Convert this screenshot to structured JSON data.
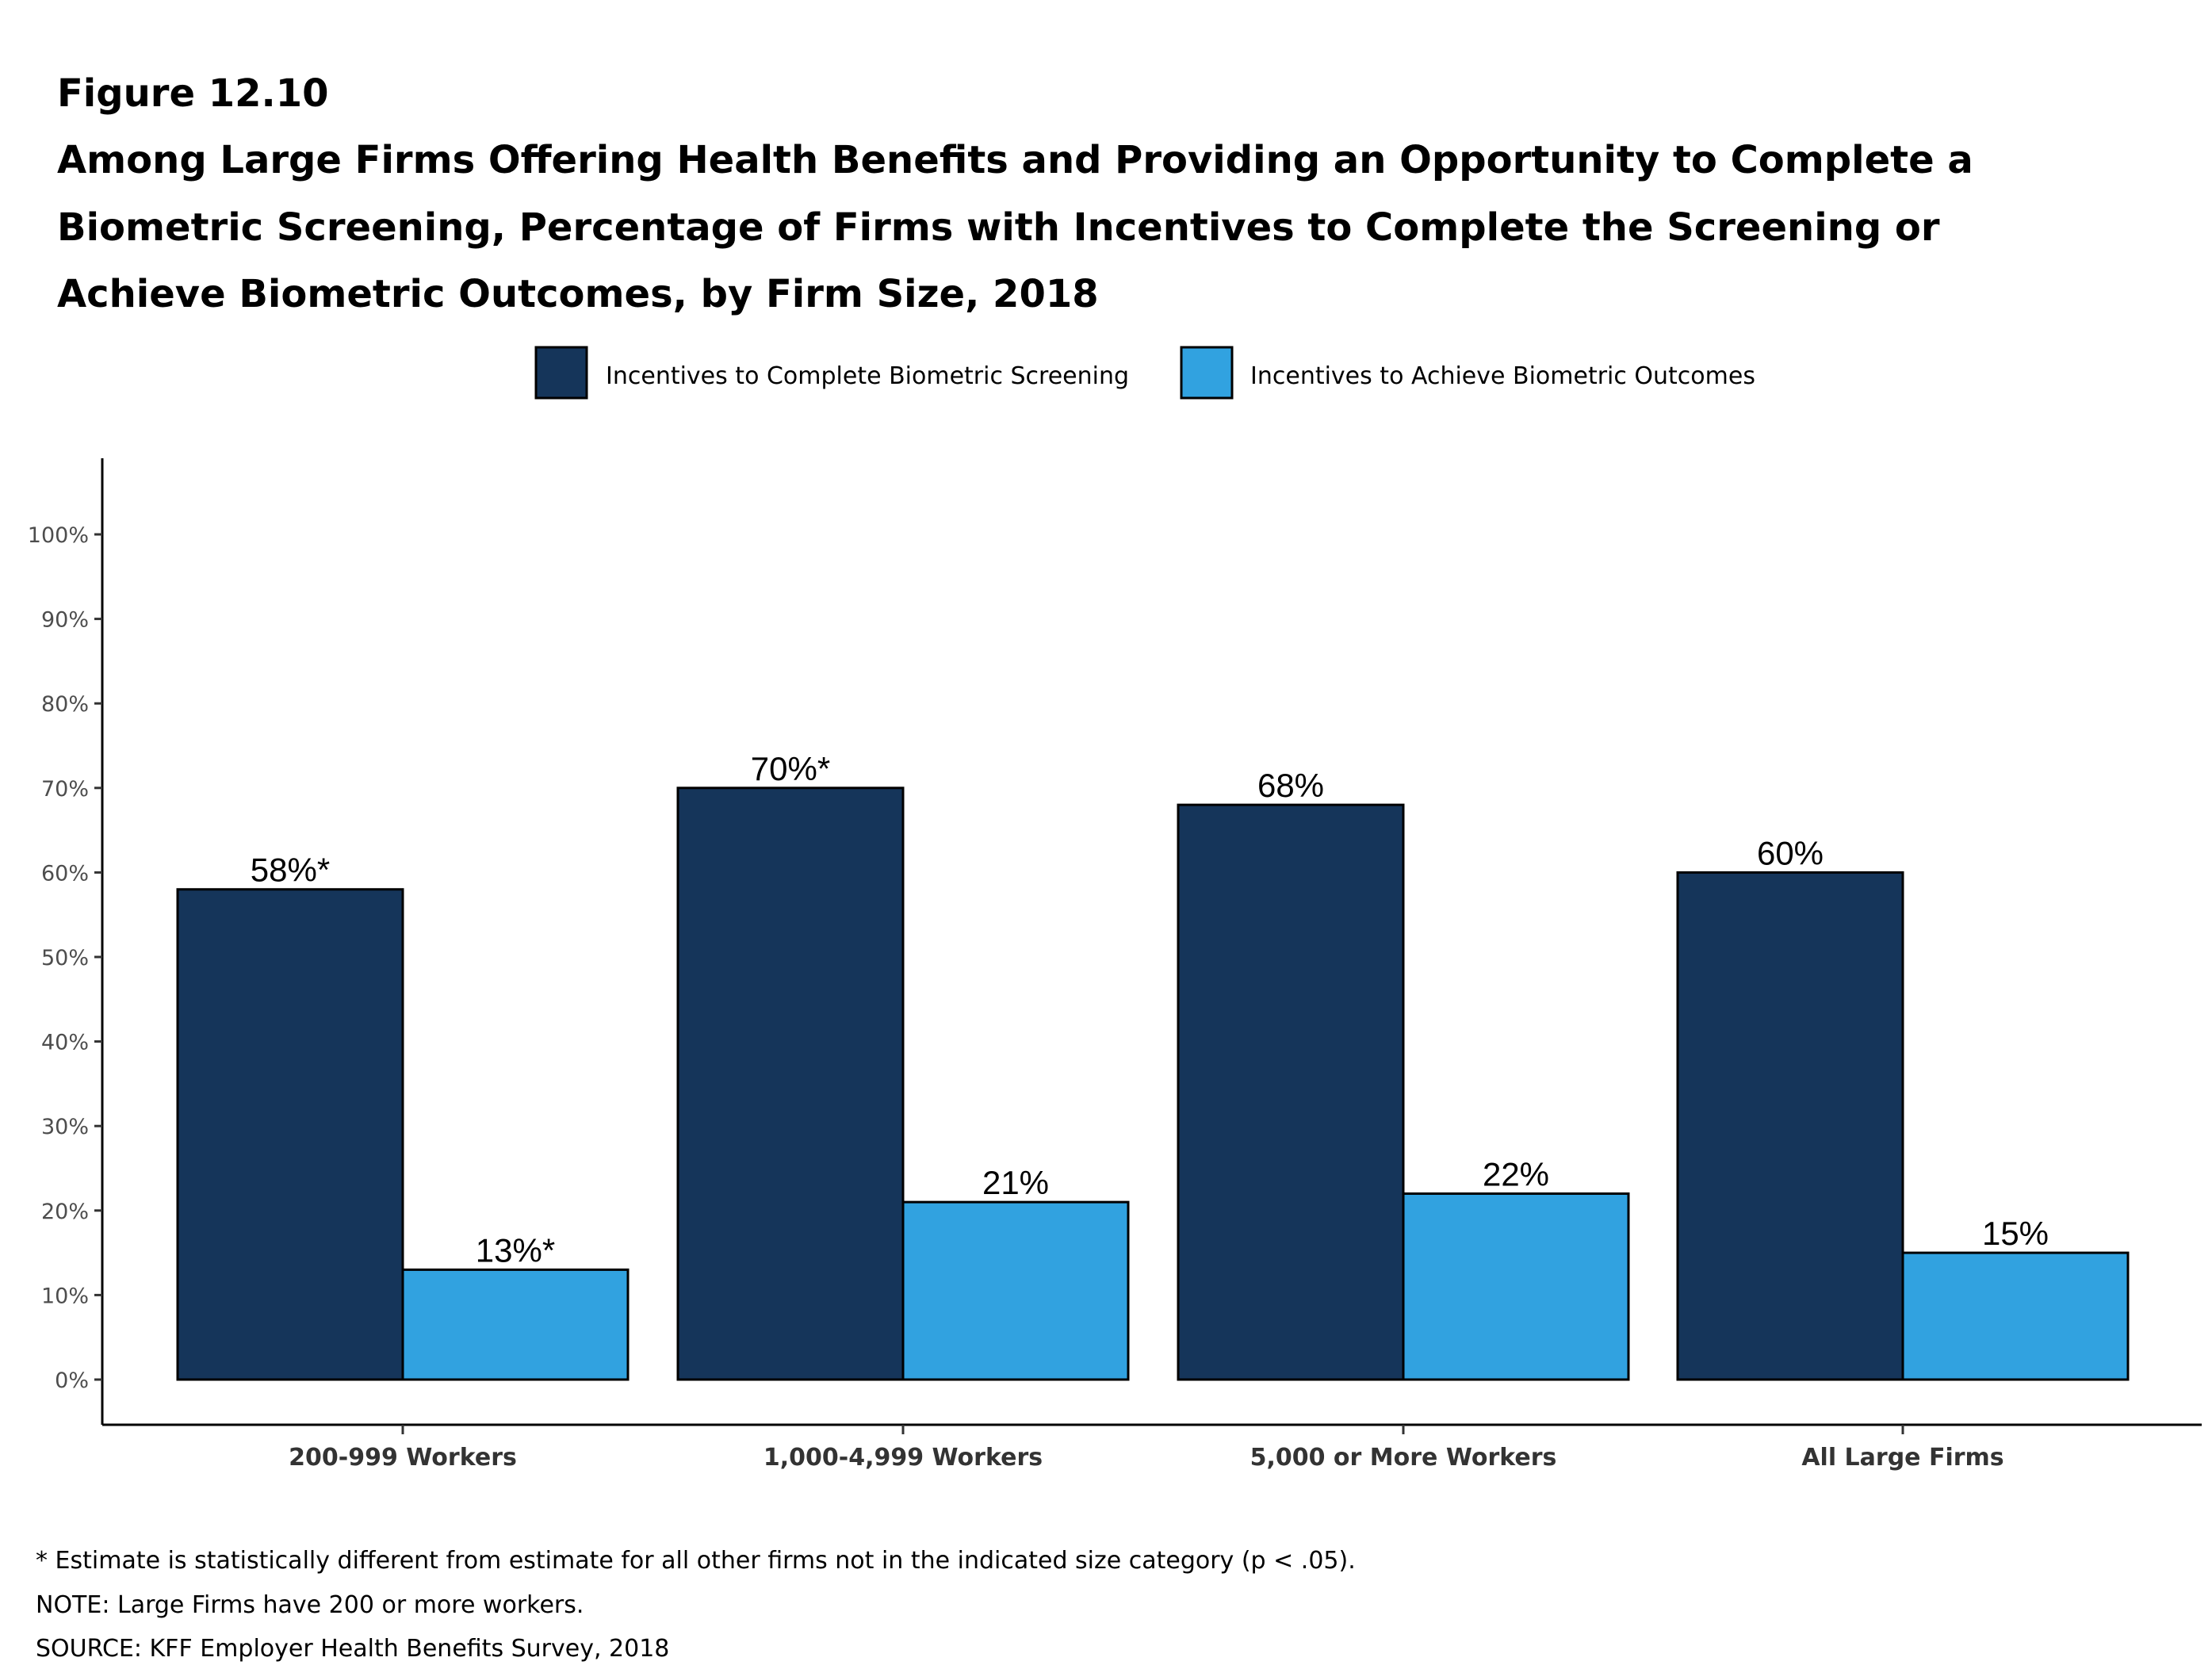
{
  "figure_label": "Figure 12.10",
  "title_lines": [
    "Among Large Firms Offering Health Benefits and Providing an Opportunity to Complete a",
    "Biometric Screening, Percentage of Firms with Incentives to Complete the Screening or",
    "Achieve Biometric Outcomes, by Firm Size, 2018"
  ],
  "chart_data": {
    "type": "bar",
    "title": "Among Large Firms Offering Health Benefits and Providing an Opportunity to Complete a Biometric Screening, Percentage of Firms with Incentives to Complete the Screening or Achieve Biometric Outcomes, by Firm Size, 2018",
    "categories": [
      "200-999 Workers",
      "1,000-4,999 Workers",
      "5,000 or More Workers",
      "All Large Firms"
    ],
    "series": [
      {
        "name": "Incentives to Complete Biometric Screening",
        "color": "#15355A",
        "values": [
          58,
          70,
          68,
          60
        ],
        "labels": [
          "58%*",
          "70%*",
          "68%",
          "60%"
        ]
      },
      {
        "name": "Incentives to Achieve Biometric Outcomes",
        "color": "#31A2E0",
        "values": [
          13,
          21,
          22,
          15
        ],
        "labels": [
          "13%*",
          "21%",
          "22%",
          "15%"
        ]
      }
    ],
    "ylim": [
      0,
      100
    ],
    "yticks": [
      "0%",
      "10%",
      "20%",
      "30%",
      "40%",
      "50%",
      "60%",
      "70%",
      "80%",
      "90%",
      "100%"
    ],
    "xlabel": "",
    "ylabel": "",
    "grid": false,
    "legend_position": "top"
  },
  "notes": [
    "* Estimate is statistically different from estimate for all other firms not in the indicated size category (p < .05).",
    "NOTE: Large Firms have 200 or more workers.",
    "SOURCE: KFF Employer Health Benefits Survey, 2018"
  ]
}
